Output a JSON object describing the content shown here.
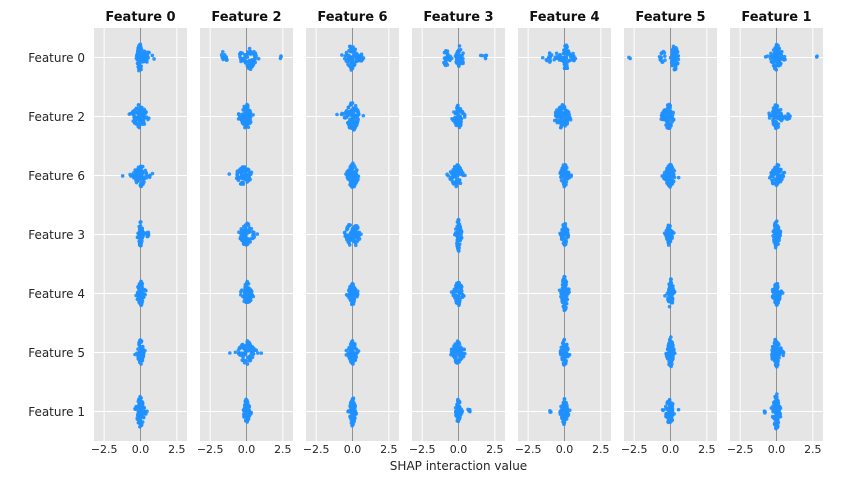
{
  "figure": {
    "bg_color": "#e5e5e5",
    "grid_color": "#ffffff",
    "zero_line_color": "#929292",
    "dot_color": "#1E90FF"
  },
  "chart_data": {
    "type": "scatter",
    "variant": "shap-interaction-beeswarm-matrix",
    "title": "",
    "xlabel": "SHAP interaction value",
    "xlim": [
      -3.2,
      3.2
    ],
    "xticks": [
      -2.5,
      0.0,
      2.5
    ],
    "xtick_labels": [
      "−2.5",
      "0.0",
      "2.5"
    ],
    "grid": true,
    "row_labels": [
      "Feature 0",
      "Feature 2",
      "Feature 6",
      "Feature 3",
      "Feature 4",
      "Feature 5",
      "Feature 1"
    ],
    "cluster_format": [
      "center",
      "spread_std",
      "count",
      "half_height_px"
    ],
    "columns": [
      {
        "title": "Feature 0",
        "cells": [
          [
            [
              -0.05,
              0.1,
              55,
              16
            ],
            [
              0.35,
              0.3,
              30,
              7
            ],
            [
              0.05,
              0.2,
              15,
              8
            ]
          ],
          [
            [
              -0.1,
              0.28,
              70,
              12
            ],
            [
              0.25,
              0.18,
              20,
              8
            ]
          ],
          [
            [
              0.0,
              0.28,
              80,
              11
            ]
          ],
          [
            [
              0.0,
              0.1,
              55,
              13
            ],
            [
              0.45,
              0.12,
              10,
              4
            ]
          ],
          [
            [
              0.0,
              0.15,
              70,
              13
            ]
          ],
          [
            [
              0.0,
              0.12,
              70,
              13
            ]
          ],
          [
            [
              0.0,
              0.17,
              80,
              16
            ]
          ]
        ]
      },
      {
        "title": "Feature 2",
        "cells": [
          [
            [
              -1.55,
              0.12,
              12,
              7
            ],
            [
              0.25,
              0.22,
              55,
              12
            ],
            [
              -0.35,
              0.12,
              12,
              6
            ],
            [
              2.35,
              0.04,
              3,
              2
            ]
          ],
          [
            [
              0.0,
              0.2,
              75,
              13
            ]
          ],
          [
            [
              -0.2,
              0.28,
              70,
              11
            ]
          ],
          [
            [
              0.0,
              0.26,
              80,
              12
            ]
          ],
          [
            [
              0.05,
              0.2,
              75,
              12
            ]
          ],
          [
            [
              0.0,
              0.3,
              85,
              12
            ]
          ],
          [
            [
              0.0,
              0.12,
              70,
              13
            ]
          ]
        ]
      },
      {
        "title": "Feature 6",
        "cells": [
          [
            [
              -0.05,
              0.25,
              70,
              13
            ],
            [
              0.55,
              0.12,
              10,
              4
            ]
          ],
          [
            [
              0.0,
              0.3,
              90,
              14
            ]
          ],
          [
            [
              0.0,
              0.2,
              80,
              13
            ]
          ],
          [
            [
              -0.2,
              0.18,
              40,
              11
            ],
            [
              0.25,
              0.15,
              40,
              11
            ]
          ],
          [
            [
              0.0,
              0.15,
              70,
              12
            ]
          ],
          [
            [
              0.0,
              0.18,
              75,
              12
            ]
          ],
          [
            [
              0.0,
              0.12,
              75,
              15
            ]
          ]
        ]
      },
      {
        "title": "Feature 3",
        "cells": [
          [
            [
              -0.85,
              0.15,
              25,
              9
            ],
            [
              0.1,
              0.15,
              45,
              12
            ],
            [
              1.7,
              0.25,
              6,
              3
            ]
          ],
          [
            [
              0.0,
              0.2,
              75,
              12
            ]
          ],
          [
            [
              -0.1,
              0.25,
              70,
              12
            ]
          ],
          [
            [
              0.0,
              0.1,
              80,
              17
            ]
          ],
          [
            [
              0.0,
              0.18,
              70,
              12
            ]
          ],
          [
            [
              -0.05,
              0.22,
              75,
              12
            ]
          ],
          [
            [
              0.0,
              0.1,
              60,
              13
            ],
            [
              0.7,
              0.07,
              6,
              3
            ]
          ]
        ]
      },
      {
        "title": "Feature 4",
        "cells": [
          [
            [
              -0.8,
              0.35,
              25,
              6
            ],
            [
              0.1,
              0.14,
              50,
              13
            ],
            [
              0.6,
              0.1,
              8,
              4
            ]
          ],
          [
            [
              -0.15,
              0.3,
              80,
              12
            ]
          ],
          [
            [
              0.0,
              0.15,
              70,
              12
            ]
          ],
          [
            [
              0.0,
              0.13,
              65,
              12
            ]
          ],
          [
            [
              0.0,
              0.13,
              85,
              18
            ]
          ],
          [
            [
              0.0,
              0.15,
              75,
              13
            ]
          ],
          [
            [
              0.0,
              0.15,
              70,
              13
            ],
            [
              -1.0,
              0.04,
              3,
              2
            ]
          ]
        ]
      },
      {
        "title": "Feature 5",
        "cells": [
          [
            [
              -2.75,
              0.03,
              2,
              2
            ],
            [
              -0.5,
              0.12,
              15,
              7
            ],
            [
              0.3,
              0.16,
              55,
              13
            ]
          ],
          [
            [
              -0.15,
              0.2,
              75,
              13
            ]
          ],
          [
            [
              -0.05,
              0.2,
              75,
              12
            ]
          ],
          [
            [
              -0.1,
              0.12,
              60,
              11
            ]
          ],
          [
            [
              0.0,
              0.12,
              80,
              15
            ]
          ],
          [
            [
              0.0,
              0.12,
              85,
              16
            ]
          ],
          [
            [
              -0.05,
              0.2,
              75,
              12
            ]
          ]
        ]
      },
      {
        "title": "Feature 1",
        "cells": [
          [
            [
              0.0,
              0.25,
              70,
              13
            ],
            [
              2.8,
              0.02,
              2,
              2
            ]
          ],
          [
            [
              0.0,
              0.25,
              70,
              12
            ],
            [
              0.75,
              0.1,
              8,
              4
            ]
          ],
          [
            [
              0.0,
              0.25,
              75,
              12
            ]
          ],
          [
            [
              0.0,
              0.12,
              70,
              15
            ]
          ],
          [
            [
              0.0,
              0.15,
              70,
              12
            ]
          ],
          [
            [
              0.0,
              0.2,
              85,
              15
            ]
          ],
          [
            [
              0.0,
              0.15,
              90,
              18
            ],
            [
              -0.8,
              0.04,
              3,
              2
            ]
          ]
        ]
      }
    ]
  }
}
